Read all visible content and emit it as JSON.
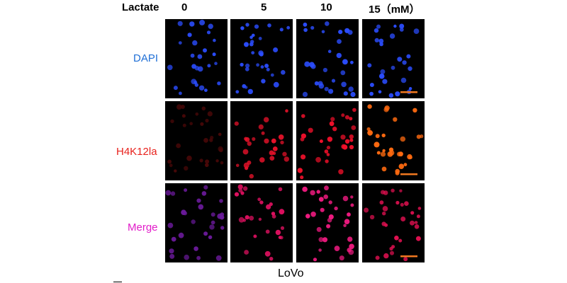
{
  "header": {
    "treatment_label": "Lactate",
    "concentrations": [
      "0",
      "5",
      "10",
      "15"
    ],
    "unit": "（mM）"
  },
  "rows": [
    {
      "label": "DAPI",
      "label_color": "#1f6fd6"
    },
    {
      "label": "H4K12la",
      "label_color": "#e8221d"
    },
    {
      "label": "Merge",
      "label_color": "#e21cc9"
    }
  ],
  "footer": {
    "cell_line": "LoVo"
  },
  "colors": {
    "dapi": "#2b4dff",
    "h4k12la_0": "#4a0808",
    "h4k12la_5": "#e8122a",
    "h4k12la_10": "#f0102a",
    "h4k12la_15": "#ff6a10",
    "merge_0": "#6a1a9a",
    "merge_5": "#e01060",
    "merge_10": "#f01a80",
    "merge_15": "#e01050",
    "scale_bar": "#f07820"
  }
}
